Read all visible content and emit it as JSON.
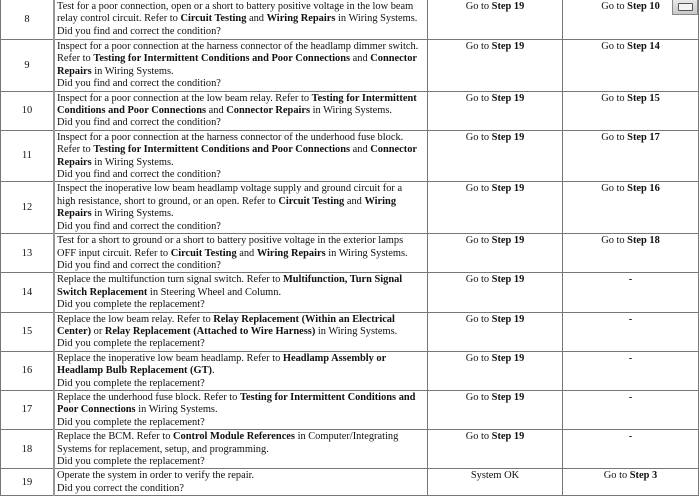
{
  "rows": [
    {
      "step": "8",
      "h": 40,
      "lines": [
        [
          {
            "t": "Test for a poor connection, open or a short to battery positive voltage in the low beam"
          }
        ],
        [
          {
            "t": "relay control circuit. Refer to "
          },
          {
            "t": "Circuit Testing",
            "b": true
          },
          {
            "t": " and "
          },
          {
            "t": "Wiring Repairs",
            "b": true
          },
          {
            "t": " in Wiring Systems."
          }
        ],
        [
          {
            "t": "Did you find and correct the condition?"
          }
        ]
      ],
      "yes": [
        {
          "t": "Go to "
        },
        {
          "t": "Step 19",
          "b": true
        }
      ],
      "no": [
        {
          "t": "Go to "
        },
        {
          "t": "Step 10",
          "b": true
        }
      ]
    },
    {
      "step": "9",
      "h": 51,
      "lines": [
        [
          {
            "t": "Inspect for a poor connection at the harness connector of the headlamp dimmer switch."
          }
        ],
        [
          {
            "t": "Refer to "
          },
          {
            "t": "Testing for Intermittent Conditions and Poor Connections",
            "b": true
          },
          {
            "t": " and "
          },
          {
            "t": "Connector",
            "b": true
          }
        ],
        [
          {
            "t": "Repairs",
            "b": true
          },
          {
            "t": " in Wiring Systems."
          }
        ],
        [
          {
            "t": "Did you find and correct the condition?"
          }
        ]
      ],
      "yes": [
        {
          "t": "Go to "
        },
        {
          "t": "Step 19",
          "b": true
        }
      ],
      "no": [
        {
          "t": "Go to "
        },
        {
          "t": "Step 14",
          "b": true
        }
      ]
    },
    {
      "step": "10",
      "h": 39,
      "lines": [
        [
          {
            "t": "Inspect for a poor connection at the low beam relay. Refer to "
          },
          {
            "t": "Testing for Intermittent",
            "b": true
          }
        ],
        [
          {
            "t": "Conditions and Poor Connections",
            "b": true
          },
          {
            "t": " and "
          },
          {
            "t": "Connector Repairs",
            "b": true
          },
          {
            "t": " in Wiring Systems."
          }
        ],
        [
          {
            "t": "Did you find and correct the condition?"
          }
        ]
      ],
      "yes": [
        {
          "t": "Go to "
        },
        {
          "t": "Step 19",
          "b": true
        }
      ],
      "no": [
        {
          "t": "Go to "
        },
        {
          "t": "Step 15",
          "b": true
        }
      ]
    },
    {
      "step": "11",
      "h": 50,
      "lines": [
        [
          {
            "t": "Inspect for a poor connection at the harness connector of the underhood fuse block."
          }
        ],
        [
          {
            "t": "Refer to "
          },
          {
            "t": "Testing for Intermittent Conditions and Poor Connections",
            "b": true
          },
          {
            "t": " and "
          },
          {
            "t": "Connector",
            "b": true
          }
        ],
        [
          {
            "t": "Repairs",
            "b": true
          },
          {
            "t": " in Wiring Systems."
          }
        ],
        [
          {
            "t": "Did you find and correct the condition?"
          }
        ]
      ],
      "yes": [
        {
          "t": "Go to "
        },
        {
          "t": "Step 19",
          "b": true
        }
      ],
      "no": [
        {
          "t": "Go to "
        },
        {
          "t": "Step 17",
          "b": true
        }
      ]
    },
    {
      "step": "12",
      "h": 50,
      "lines": [
        [
          {
            "t": "Inspect the inoperative low beam headlamp voltage supply and ground circuit for a"
          }
        ],
        [
          {
            "t": "high resistance, short to ground, or an open. Refer to "
          },
          {
            "t": "Circuit Testing",
            "b": true
          },
          {
            "t": " and "
          },
          {
            "t": "Wiring",
            "b": true
          }
        ],
        [
          {
            "t": "Repairs",
            "b": true
          },
          {
            "t": " in Wiring Systems."
          }
        ],
        [
          {
            "t": "Did you find and correct the condition?"
          }
        ]
      ],
      "yes": [
        {
          "t": "Go to "
        },
        {
          "t": "Step 19",
          "b": true
        }
      ],
      "no": [
        {
          "t": "Go to "
        },
        {
          "t": "Step 16",
          "b": true
        }
      ]
    },
    {
      "step": "13",
      "h": 38,
      "lines": [
        [
          {
            "t": "Test for a short to ground or a short to battery positive voltage in the exterior lamps"
          }
        ],
        [
          {
            "t": "OFF input circuit. Refer to "
          },
          {
            "t": "Circuit Testing",
            "b": true
          },
          {
            "t": " and "
          },
          {
            "t": "Wiring Repairs",
            "b": true
          },
          {
            "t": " in Wiring Systems."
          }
        ],
        [
          {
            "t": "Did you find and correct the condition?"
          }
        ]
      ],
      "yes": [
        {
          "t": "Go to "
        },
        {
          "t": "Step 19",
          "b": true
        }
      ],
      "no": [
        {
          "t": "Go to "
        },
        {
          "t": "Step 18",
          "b": true
        }
      ]
    },
    {
      "step": "14",
      "h": 38,
      "lines": [
        [
          {
            "t": "Replace the multifunction turn signal switch. Refer to "
          },
          {
            "t": "Multifunction, Turn Signal",
            "b": true
          }
        ],
        [
          {
            "t": "Switch Replacement",
            "b": true
          },
          {
            "t": " in Steering Wheel and Column."
          }
        ],
        [
          {
            "t": "Did you complete the replacement?"
          }
        ]
      ],
      "yes": [
        {
          "t": "Go to "
        },
        {
          "t": "Step 19",
          "b": true
        }
      ],
      "no": [
        {
          "t": "-",
          "b": true
        }
      ]
    },
    {
      "step": "15",
      "h": 39,
      "lines": [
        [
          {
            "t": "Replace the low beam relay. Refer to "
          },
          {
            "t": "Relay Replacement (Within an Electrical",
            "b": true
          }
        ],
        [
          {
            "t": "Center)",
            "b": true
          },
          {
            "t": " or "
          },
          {
            "t": "Relay Replacement (Attached to Wire Harness)",
            "b": true
          },
          {
            "t": " in Wiring Systems."
          }
        ],
        [
          {
            "t": "Did you complete the replacement?"
          }
        ]
      ],
      "yes": [
        {
          "t": "Go to "
        },
        {
          "t": "Step 19",
          "b": true
        }
      ],
      "no": [
        {
          "t": "-",
          "b": true
        }
      ]
    },
    {
      "step": "16",
      "h": 39,
      "lines": [
        [
          {
            "t": "Replace the inoperative low beam headlamp. Refer to "
          },
          {
            "t": "Headlamp Assembly or",
            "b": true
          }
        ],
        [
          {
            "t": "Headlamp Bulb Replacement (GT)",
            "b": true
          },
          {
            "t": "."
          }
        ],
        [
          {
            "t": "Did you complete the replacement?"
          }
        ]
      ],
      "yes": [
        {
          "t": "Go to "
        },
        {
          "t": "Step 19",
          "b": true
        }
      ],
      "no": [
        {
          "t": "-",
          "b": true
        }
      ]
    },
    {
      "step": "17",
      "h": 39,
      "lines": [
        [
          {
            "t": "Replace the underhood fuse block. Refer to "
          },
          {
            "t": "Testing for Intermittent Conditions and",
            "b": true
          }
        ],
        [
          {
            "t": "Poor Connections",
            "b": true
          },
          {
            "t": " in Wiring Systems."
          }
        ],
        [
          {
            "t": "Did you complete the replacement?"
          }
        ]
      ],
      "yes": [
        {
          "t": "Go to "
        },
        {
          "t": "Step 19",
          "b": true
        }
      ],
      "no": [
        {
          "t": "-",
          "b": true
        }
      ]
    },
    {
      "step": "18",
      "h": 39,
      "lines": [
        [
          {
            "t": "Replace the BCM. Refer to "
          },
          {
            "t": "Control Module References",
            "b": true
          },
          {
            "t": " in Computer/Integrating"
          }
        ],
        [
          {
            "t": "Systems for replacement, setup, and programming."
          }
        ],
        [
          {
            "t": "Did you complete the replacement?"
          }
        ]
      ],
      "yes": [
        {
          "t": "Go to "
        },
        {
          "t": "Step 19",
          "b": true
        }
      ],
      "no": [
        {
          "t": "-",
          "b": true
        }
      ]
    },
    {
      "step": "19",
      "h": 26,
      "lines": [
        [
          {
            "t": "Operate the system in order to verify the repair."
          }
        ],
        [
          {
            "t": "Did you correct the condition?"
          }
        ]
      ],
      "yes": [
        {
          "t": "System OK"
        }
      ],
      "no": [
        {
          "t": "Go to "
        },
        {
          "t": "Step 3",
          "b": true
        }
      ]
    }
  ],
  "icons": {
    "top_right": "printer-icon"
  }
}
